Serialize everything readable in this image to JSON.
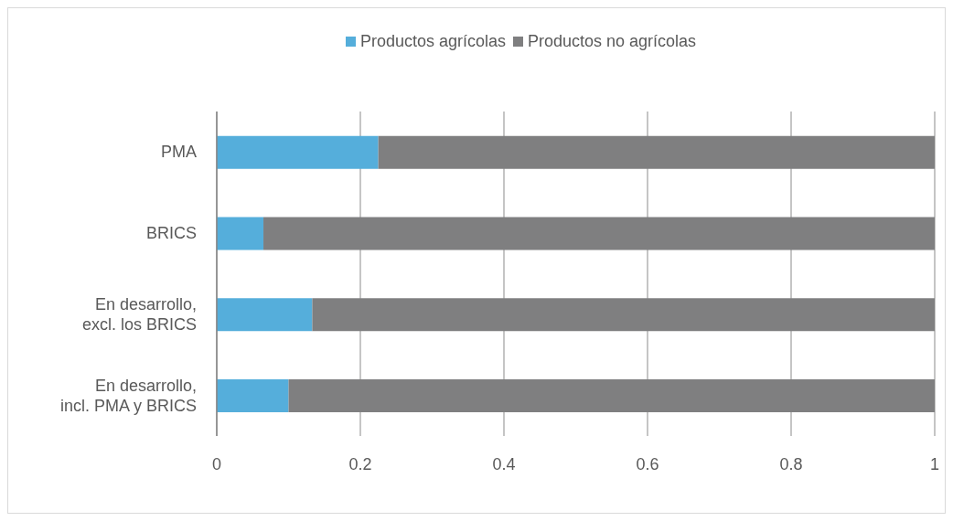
{
  "chart_data": {
    "type": "bar",
    "orientation": "horizontal",
    "stacked": true,
    "categories": [
      "PMA",
      "BRICS",
      "En desarrollo, excl. los BRICS",
      "En desarrollo, incl. PMA y BRICS"
    ],
    "series": [
      {
        "name": "Productos agrícolas",
        "color": "#55aedb",
        "values": [
          0.225,
          0.065,
          0.133,
          0.1
        ]
      },
      {
        "name": "Productos no agrícolas",
        "color": "#7f7f80",
        "values": [
          0.775,
          0.935,
          0.867,
          0.9
        ]
      }
    ],
    "xlim": [
      0,
      1
    ],
    "xticks": [
      0,
      0.2,
      0.4,
      0.6,
      0.8,
      1
    ],
    "grid": "x",
    "legend": "top"
  }
}
